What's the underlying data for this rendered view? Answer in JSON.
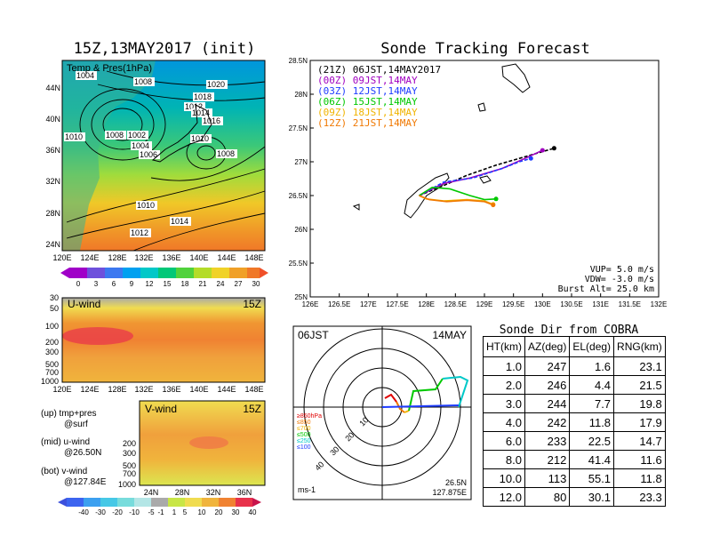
{
  "left_panel": {
    "title": "15Z,13MAY2017 (init)",
    "map_label": "Temp & Pres(1hPa)",
    "lat_ticks": [
      "44N",
      "40N",
      "36N",
      "32N",
      "28N",
      "24N"
    ],
    "lon_ticks": [
      "120E",
      "124E",
      "128E",
      "132E",
      "136E",
      "140E",
      "144E",
      "148E"
    ],
    "temp_colorbar": [
      "0",
      "3",
      "6",
      "9",
      "12",
      "15",
      "18",
      "21",
      "24",
      "27",
      "30"
    ],
    "isobar_labels": [
      "1004",
      "1006",
      "1008",
      "1020",
      "1018",
      "1012",
      "1014",
      "1016",
      "1010",
      "1008",
      "1002",
      "1004",
      "1006",
      "1010",
      "1008",
      "1010",
      "1014",
      "1012"
    ],
    "uwind": {
      "label": "U-wind",
      "time": "15Z",
      "levels": [
        "30",
        "50",
        "100",
        "200",
        "300",
        "500",
        "700",
        "1000"
      ],
      "lon_ticks": [
        "120E",
        "124E",
        "128E",
        "132E",
        "136E",
        "140E",
        "144E",
        "148E"
      ]
    },
    "vwind": {
      "label": "V-wind",
      "time": "15Z",
      "levels": [
        "200",
        "300",
        "500",
        "700",
        "1000"
      ],
      "lat_ticks": [
        "24N",
        "28N",
        "32N",
        "36N"
      ]
    },
    "wind_colorbar": [
      "-40",
      "-30",
      "-20",
      "-10",
      "-5",
      "-1",
      "1",
      "5",
      "10",
      "20",
      "30",
      "40"
    ],
    "notes": [
      {
        "name": "(up) tmp+pres",
        "sub": "@surf"
      },
      {
        "name": "(mid) u-wind",
        "sub": "@26.50N"
      },
      {
        "name": "(bot) v-wind",
        "sub": "@127.84E"
      }
    ]
  },
  "tracking": {
    "title": "Sonde Tracking Forecast",
    "legend": [
      {
        "text": "(21Z) 06JST,14MAY2017",
        "color": "#000000"
      },
      {
        "text": "(00Z) 09JST,14MAY",
        "color": "#a000c0"
      },
      {
        "text": "(03Z) 12JST,14MAY",
        "color": "#1e3cff"
      },
      {
        "text": "(06Z) 15JST,14MAY",
        "color": "#00c800"
      },
      {
        "text": "(09Z) 18JST,14MAY",
        "color": "#f0b400"
      },
      {
        "text": "(12Z) 21JST,14MAY",
        "color": "#f07800"
      }
    ],
    "info": [
      "VUP= 5.0 m/s",
      "VDW= -3.0 m/s",
      "Burst Alt= 25.0 km"
    ]
  },
  "polar": {
    "time_label": "06JST",
    "date_label": "14MAY",
    "unit": "ms-1",
    "location": [
      "26.5N",
      "127.875E"
    ],
    "ring_labels": [
      "10",
      "20",
      "30",
      "40"
    ],
    "levels": [
      {
        "text": "≥850hPa",
        "color": "#e00000"
      },
      {
        "text": "≤850",
        "color": "#f07800"
      },
      {
        "text": "≤700",
        "color": "#f0b400"
      },
      {
        "text": "≤500",
        "color": "#00c800"
      },
      {
        "text": "≤250",
        "color": "#00c8c8"
      },
      {
        "text": "≤100",
        "color": "#1e3cff"
      }
    ]
  },
  "cobra": {
    "title": "Sonde Dir from COBRA",
    "headers": [
      "HT(km)",
      "AZ(deg)",
      "EL(deg)",
      "RNG(km)"
    ],
    "rows": [
      [
        "1.0",
        "247",
        "1.6",
        "23.1"
      ],
      [
        "2.0",
        "246",
        "4.4",
        "21.5"
      ],
      [
        "3.0",
        "244",
        "7.7",
        "19.8"
      ],
      [
        "4.0",
        "242",
        "11.8",
        "17.9"
      ],
      [
        "6.0",
        "233",
        "22.5",
        "14.7"
      ],
      [
        "8.0",
        "212",
        "41.4",
        "11.6"
      ],
      [
        "10.0",
        "113",
        "55.1",
        "11.8"
      ],
      [
        "12.0",
        "80",
        "30.1",
        "23.3"
      ]
    ]
  },
  "chart_data": [
    {
      "type": "line",
      "title": "Sonde Tracking Forecast",
      "xlabel": "",
      "ylabel": "",
      "xlim": [
        126,
        132
      ],
      "ylim": [
        25,
        28.5
      ],
      "x_ticks": [
        "126E",
        "126.5E",
        "127E",
        "127.5E",
        "128E",
        "128.5E",
        "129E",
        "129.5E",
        "130E",
        "130.5E",
        "131E",
        "131.5E",
        "132E"
      ],
      "y_ticks": [
        "25N",
        "25.5N",
        "26N",
        "26.5N",
        "27N",
        "27.5N",
        "28N",
        "28.5N"
      ],
      "series": [
        {
          "name": "(21Z) 06JST,14MAY2017",
          "color": "#000000",
          "x": [
            127.875,
            128.3,
            128.7,
            129.2,
            129.8,
            130.2
          ],
          "y": [
            26.5,
            26.65,
            26.8,
            26.95,
            27.1,
            27.2
          ]
        },
        {
          "name": "(00Z) 09JST,14MAY",
          "color": "#a000c0",
          "x": [
            127.875,
            128.3,
            128.75,
            129.3,
            129.7,
            130.0
          ],
          "y": [
            26.5,
            26.68,
            26.76,
            26.9,
            27.05,
            27.17
          ]
        },
        {
          "name": "(03Z) 12JST,14MAY",
          "color": "#1e3cff",
          "x": [
            127.875,
            128.3,
            128.8,
            129.3,
            129.6,
            129.8
          ],
          "y": [
            26.5,
            26.7,
            26.76,
            26.9,
            27.0,
            27.05
          ]
        },
        {
          "name": "(06Z) 15JST,14MAY",
          "color": "#00c800",
          "x": [
            127.875,
            128.1,
            128.4,
            128.75,
            129.0,
            129.2
          ],
          "y": [
            26.5,
            26.62,
            26.6,
            26.5,
            26.44,
            26.45
          ]
        },
        {
          "name": "(09Z) 18JST,14MAY",
          "color": "#f0b400",
          "x": [
            127.875,
            128.0,
            128.3,
            128.7,
            129.0,
            129.15
          ],
          "y": [
            26.5,
            26.45,
            26.42,
            26.44,
            26.42,
            26.37
          ]
        },
        {
          "name": "(12Z) 21JST,14MAY",
          "color": "#f07800",
          "x": [
            127.875,
            128.05,
            128.35,
            128.7,
            129.0,
            129.15
          ],
          "y": [
            26.5,
            26.44,
            26.41,
            26.43,
            26.41,
            26.36
          ]
        }
      ]
    }
  ]
}
